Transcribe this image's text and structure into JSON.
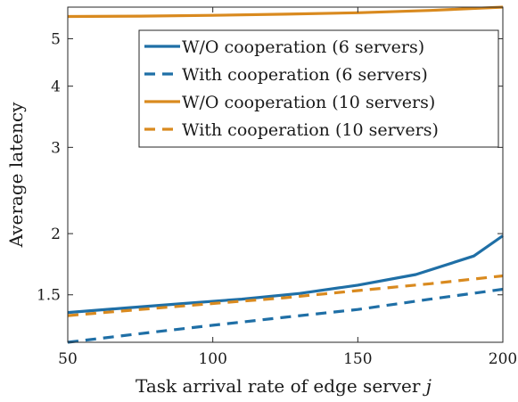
{
  "chart_data": {
    "type": "line",
    "xlabel": "Task arrival rate of edge server j",
    "xlabel_main": "Task arrival rate of edge server",
    "xlabel_var": "j",
    "ylabel": "Average latency",
    "xlim": [
      50,
      200
    ],
    "ylim": [
      1.2,
      5.8
    ],
    "y_scale": "log",
    "xticks": [
      50,
      100,
      150,
      200
    ],
    "yticks": [
      1.5,
      2,
      3,
      4,
      5
    ],
    "legend_position": "top-right",
    "grid": false,
    "series": [
      {
        "name": "W/O cooperation (6 servers)",
        "color": "#1f6fa6",
        "dash": "solid",
        "x": [
          50,
          70,
          90,
          110,
          130,
          150,
          170,
          190,
          200
        ],
        "y": [
          1.38,
          1.41,
          1.44,
          1.47,
          1.51,
          1.57,
          1.65,
          1.8,
          1.98
        ]
      },
      {
        "name": "With cooperation (6 servers)",
        "color": "#1f6fa6",
        "dash": "dashed",
        "x": [
          50,
          75,
          100,
          125,
          150,
          175,
          200
        ],
        "y": [
          1.2,
          1.25,
          1.3,
          1.35,
          1.4,
          1.47,
          1.54
        ]
      },
      {
        "name": "W/O cooperation (10 servers)",
        "color": "#d98a1f",
        "dash": "solid",
        "x": [
          50,
          75,
          100,
          125,
          150,
          175,
          200
        ],
        "y": [
          5.55,
          5.56,
          5.58,
          5.61,
          5.65,
          5.71,
          5.8
        ]
      },
      {
        "name": "With cooperation (10 servers)",
        "color": "#d98a1f",
        "dash": "dashed",
        "x": [
          50,
          75,
          100,
          125,
          150,
          175,
          200
        ],
        "y": [
          1.36,
          1.4,
          1.44,
          1.48,
          1.53,
          1.58,
          1.64
        ]
      }
    ]
  }
}
